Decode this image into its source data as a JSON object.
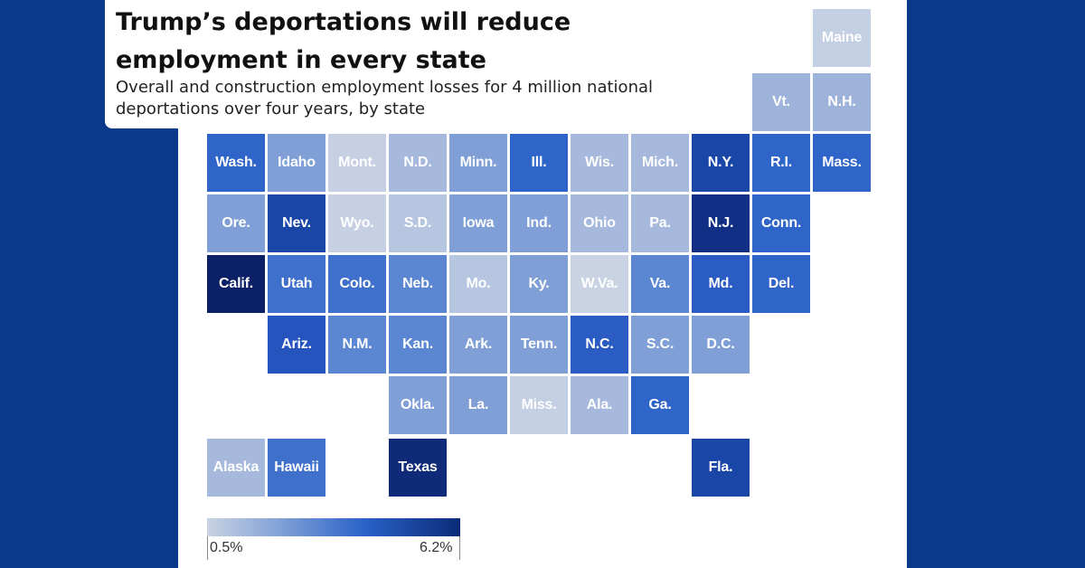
{
  "title": "Trump’s deportations will reduce employment in every state",
  "subtitle": "Overall and construction employment losses for 4 million national deportations over four years, by state",
  "legend": {
    "min_label": "0.5%",
    "max_label": "6.2%",
    "min_color": "#c9d3e3",
    "max_color": "#0b2b78"
  },
  "states": [
    {
      "id": "maine",
      "label": "Maine",
      "color": "#c3cfe2"
    },
    {
      "id": "vt",
      "label": "Vt.",
      "color": "#9db3da"
    },
    {
      "id": "nh",
      "label": "N.H.",
      "color": "#9db3da"
    },
    {
      "id": "wash",
      "label": "Wash.",
      "color": "#2f64c8"
    },
    {
      "id": "idaho",
      "label": "Idaho",
      "color": "#7f9fd6"
    },
    {
      "id": "mont",
      "label": "Mont.",
      "color": "#c6d0e2"
    },
    {
      "id": "nd",
      "label": "N.D.",
      "color": "#a6b9dc"
    },
    {
      "id": "minn",
      "label": "Minn.",
      "color": "#7f9fd6"
    },
    {
      "id": "ill",
      "label": "Ill.",
      "color": "#2f64c8"
    },
    {
      "id": "wis",
      "label": "Wis.",
      "color": "#a6b9dc"
    },
    {
      "id": "mich",
      "label": "Mich.",
      "color": "#a6b9dc"
    },
    {
      "id": "ny",
      "label": "N.Y.",
      "color": "#1a46a8"
    },
    {
      "id": "ri",
      "label": "R.I.",
      "color": "#2f64c8"
    },
    {
      "id": "mass",
      "label": "Mass.",
      "color": "#2f64c8"
    },
    {
      "id": "ore",
      "label": "Ore.",
      "color": "#7f9fd6"
    },
    {
      "id": "nev",
      "label": "Nev.",
      "color": "#1a46a8"
    },
    {
      "id": "wyo",
      "label": "Wyo.",
      "color": "#c6d0e2"
    },
    {
      "id": "sd",
      "label": "S.D.",
      "color": "#b6c6e0"
    },
    {
      "id": "iowa",
      "label": "Iowa",
      "color": "#7f9fd6"
    },
    {
      "id": "ind",
      "label": "Ind.",
      "color": "#7f9fd6"
    },
    {
      "id": "ohio",
      "label": "Ohio",
      "color": "#a6b9dc"
    },
    {
      "id": "pa",
      "label": "Pa.",
      "color": "#a6b9dc"
    },
    {
      "id": "nj",
      "label": "N.J.",
      "color": "#122f86"
    },
    {
      "id": "conn",
      "label": "Conn.",
      "color": "#2f64c8"
    },
    {
      "id": "calif",
      "label": "Calif.",
      "color": "#0b2066"
    },
    {
      "id": "utah",
      "label": "Utah",
      "color": "#3e70cc"
    },
    {
      "id": "colo",
      "label": "Colo.",
      "color": "#3e70cc"
    },
    {
      "id": "neb",
      "label": "Neb.",
      "color": "#5a86d2"
    },
    {
      "id": "mo",
      "label": "Mo.",
      "color": "#b6c6e0"
    },
    {
      "id": "ky",
      "label": "Ky.",
      "color": "#7f9fd6"
    },
    {
      "id": "wva",
      "label": "W.Va.",
      "color": "#cad3e3"
    },
    {
      "id": "va",
      "label": "Va.",
      "color": "#5a86d2"
    },
    {
      "id": "md",
      "label": "Md.",
      "color": "#2a5cc4"
    },
    {
      "id": "del",
      "label": "Del.",
      "color": "#2f64c8"
    },
    {
      "id": "ariz",
      "label": "Ariz.",
      "color": "#2554be"
    },
    {
      "id": "nm",
      "label": "N.M.",
      "color": "#5a86d2"
    },
    {
      "id": "kan",
      "label": "Kan.",
      "color": "#5a86d2"
    },
    {
      "id": "ark",
      "label": "Ark.",
      "color": "#7f9fd6"
    },
    {
      "id": "tenn",
      "label": "Tenn.",
      "color": "#7f9fd6"
    },
    {
      "id": "nc",
      "label": "N.C.",
      "color": "#2a5cc4"
    },
    {
      "id": "sc",
      "label": "S.C.",
      "color": "#7f9fd6"
    },
    {
      "id": "dc",
      "label": "D.C.",
      "color": "#7f9fd6"
    },
    {
      "id": "okla",
      "label": "Okla.",
      "color": "#7f9fd6"
    },
    {
      "id": "la",
      "label": "La.",
      "color": "#7f9fd6"
    },
    {
      "id": "miss",
      "label": "Miss.",
      "color": "#c3cfe2"
    },
    {
      "id": "ala",
      "label": "Ala.",
      "color": "#a6b9dc"
    },
    {
      "id": "ga",
      "label": "Ga.",
      "color": "#2f64c8"
    },
    {
      "id": "alaska",
      "label": "Alaska",
      "color": "#a6b9dc"
    },
    {
      "id": "hawaii",
      "label": "Hawaii",
      "color": "#3e70cc"
    },
    {
      "id": "texas",
      "label": "Texas",
      "color": "#0f2a78"
    },
    {
      "id": "fla",
      "label": "Fla.",
      "color": "#1a46a8"
    }
  ]
}
